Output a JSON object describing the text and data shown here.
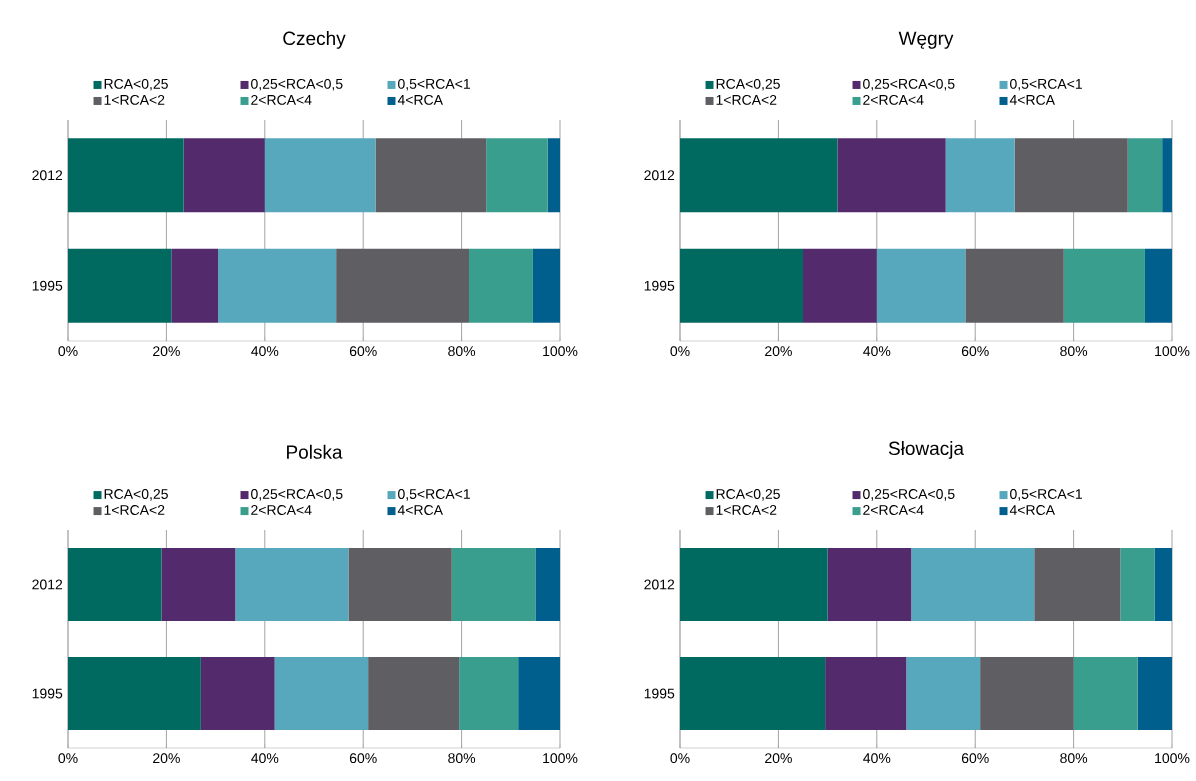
{
  "chart_data": [
    {
      "type": "bar",
      "title": "Czechy",
      "orientation": "horizontal",
      "stacked": true,
      "categories": [
        "2012",
        "1995"
      ],
      "xlim": [
        0,
        100
      ],
      "xticks": [
        {
          "value": 0,
          "label": "0%"
        },
        {
          "value": 20,
          "label": "20%"
        },
        {
          "value": 40,
          "label": "40%"
        },
        {
          "value": 60,
          "label": "60%"
        },
        {
          "value": 80,
          "label": "80%"
        },
        {
          "value": 100,
          "label": "100%"
        }
      ],
      "grid": "x",
      "legend": "top",
      "series": [
        {
          "name": "RCA<0,25",
          "color": "#006a60",
          "values": [
            23.5,
            21
          ]
        },
        {
          "name": "0,25<RCA<0,5",
          "color": "#532a6c",
          "values": [
            16.5,
            9.5
          ]
        },
        {
          "name": "0,5<RCA<1",
          "color": "#57a8bc",
          "values": [
            22.5,
            24
          ]
        },
        {
          "name": "1<RCA<2",
          "color": "#5f5e63",
          "values": [
            22.5,
            27
          ]
        },
        {
          "name": "2<RCA<4",
          "color": "#3a9e8e",
          "values": [
            12.5,
            13
          ]
        },
        {
          "name": "4<RCA",
          "color": "#005f8c",
          "values": [
            2.5,
            5.5
          ]
        }
      ]
    },
    {
      "type": "bar",
      "title": "Węgry",
      "orientation": "horizontal",
      "stacked": true,
      "categories": [
        "2012",
        "1995"
      ],
      "xlim": [
        0,
        100
      ],
      "xticks": [
        {
          "value": 0,
          "label": "0%"
        },
        {
          "value": 20,
          "label": "20%"
        },
        {
          "value": 40,
          "label": "40%"
        },
        {
          "value": 60,
          "label": "60%"
        },
        {
          "value": 80,
          "label": "80%"
        },
        {
          "value": 100,
          "label": "100%"
        }
      ],
      "grid": "x",
      "legend": "top",
      "series": [
        {
          "name": "RCA<0,25",
          "color": "#006a60",
          "values": [
            32,
            25
          ]
        },
        {
          "name": "0,25<RCA<0,5",
          "color": "#532a6c",
          "values": [
            22,
            15
          ]
        },
        {
          "name": "0,5<RCA<1",
          "color": "#57a8bc",
          "values": [
            14,
            18
          ]
        },
        {
          "name": "1<RCA<2",
          "color": "#5f5e63",
          "values": [
            23,
            20
          ]
        },
        {
          "name": "2<RCA<4",
          "color": "#3a9e8e",
          "values": [
            7,
            16.5
          ]
        },
        {
          "name": "4<RCA",
          "color": "#005f8c",
          "values": [
            2,
            5.5
          ]
        }
      ]
    },
    {
      "type": "bar",
      "title": "Polska",
      "orientation": "horizontal",
      "stacked": true,
      "categories": [
        "2012",
        "1995"
      ],
      "xlim": [
        0,
        100
      ],
      "xticks": [
        {
          "value": 0,
          "label": "0%"
        },
        {
          "value": 20,
          "label": "20%"
        },
        {
          "value": 40,
          "label": "40%"
        },
        {
          "value": 60,
          "label": "60%"
        },
        {
          "value": 80,
          "label": "80%"
        },
        {
          "value": 100,
          "label": "100%"
        }
      ],
      "grid": "x",
      "legend": "top",
      "series": [
        {
          "name": "RCA<0,25",
          "color": "#006a60",
          "values": [
            19,
            27
          ]
        },
        {
          "name": "0,25<RCA<0,5",
          "color": "#532a6c",
          "values": [
            15,
            15
          ]
        },
        {
          "name": "0,5<RCA<1",
          "color": "#57a8bc",
          "values": [
            23,
            19
          ]
        },
        {
          "name": "1<RCA<2",
          "color": "#5f5e63",
          "values": [
            21,
            18.5
          ]
        },
        {
          "name": "2<RCA<4",
          "color": "#3a9e8e",
          "values": [
            17,
            12
          ]
        },
        {
          "name": "4<RCA",
          "color": "#005f8c",
          "values": [
            5,
            8.5
          ]
        }
      ]
    },
    {
      "type": "bar",
      "title": "Słowacja",
      "orientation": "horizontal",
      "stacked": true,
      "categories": [
        "2012",
        "1995"
      ],
      "xlim": [
        0,
        100
      ],
      "xticks": [
        {
          "value": 0,
          "label": "0%"
        },
        {
          "value": 20,
          "label": "20%"
        },
        {
          "value": 40,
          "label": "40%"
        },
        {
          "value": 60,
          "label": "60%"
        },
        {
          "value": 80,
          "label": "80%"
        },
        {
          "value": 100,
          "label": "100%"
        }
      ],
      "grid": "x",
      "legend": "top",
      "series": [
        {
          "name": "RCA<0,25",
          "color": "#006a60",
          "values": [
            30,
            29.5
          ]
        },
        {
          "name": "0,25<RCA<0,5",
          "color": "#532a6c",
          "values": [
            17,
            16.5
          ]
        },
        {
          "name": "0,5<RCA<1",
          "color": "#57a8bc",
          "values": [
            25,
            15
          ]
        },
        {
          "name": "1<RCA<2",
          "color": "#5f5e63",
          "values": [
            17.5,
            19
          ]
        },
        {
          "name": "2<RCA<4",
          "color": "#3a9e8e",
          "values": [
            7,
            13
          ]
        },
        {
          "name": "4<RCA",
          "color": "#005f8c",
          "values": [
            3.5,
            7
          ]
        }
      ]
    }
  ]
}
